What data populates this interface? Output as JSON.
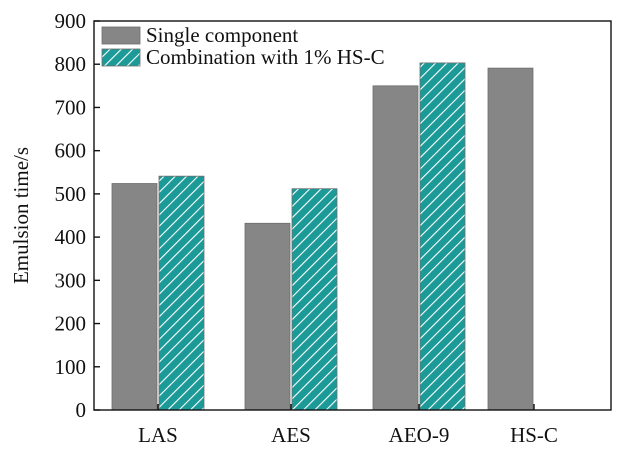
{
  "chart_data": {
    "type": "bar",
    "title": "",
    "xlabel": "",
    "ylabel": "Emulsion time/s",
    "ylim": [
      0,
      900
    ],
    "yticks": [
      0,
      100,
      200,
      300,
      400,
      500,
      600,
      700,
      800,
      900
    ],
    "categories": [
      "LAS",
      "AES",
      "AEO-9",
      "HS-C"
    ],
    "series": [
      {
        "name": "Single component",
        "color": "#868686",
        "pattern": "solid",
        "values": [
          524,
          432,
          750,
          791
        ]
      },
      {
        "name": "Combination with 1% HS-C",
        "color": "#1b9a98",
        "pattern": "hatched",
        "values": [
          541,
          512,
          803,
          null
        ]
      }
    ],
    "grid": false,
    "legend_position": "top-left"
  }
}
